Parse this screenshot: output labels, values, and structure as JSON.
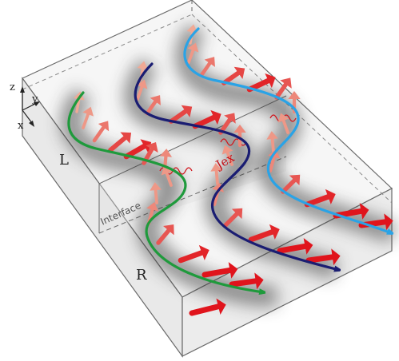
{
  "labels": {
    "z": "z",
    "y": "y",
    "x": "x",
    "left_region": "L",
    "right_region": "R",
    "interface": "Interface",
    "exchange": "Jex"
  },
  "colors": {
    "box_face": "#efefef",
    "box_top": "#f6f6f6",
    "box_edge": "#6a6a6a",
    "spiral_green": "#1f9a3c",
    "spiral_navy": "#1a1d72",
    "spiral_cyan": "#2aa3e6",
    "arrow_strong": "#e0141c",
    "arrow_light": "#f2b9a2",
    "exchange_wave": "#d1151c"
  }
}
